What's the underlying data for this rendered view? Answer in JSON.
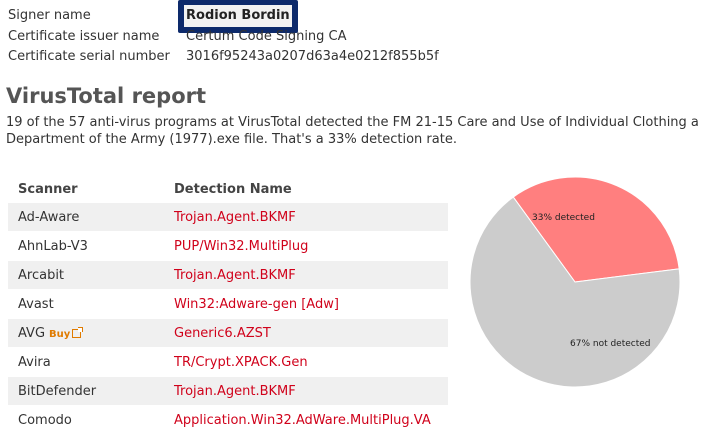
{
  "certificate": {
    "signer_label": "Signer name",
    "signer_value": "Rodion Bordin",
    "issuer_label": "Certificate issuer name",
    "issuer_value": "Certum Code Signing CA",
    "serial_label": "Certificate serial number",
    "serial_value": "3016f95243a0207d63a4e0212f855b5f"
  },
  "report": {
    "title": "VirusTotal report",
    "summary_line1": "19 of the 57 anti-virus programs at VirusTotal detected the FM 21-15 Care and Use of Individual Clothing a",
    "summary_line2": "Department of the Army (1977).exe file. That's a 33% detection rate."
  },
  "table": {
    "col_scanner": "Scanner",
    "col_detection": "Detection Name",
    "buy_label": "Buy",
    "rows": [
      {
        "scanner": "Ad-Aware",
        "detection": "Trojan.Agent.BKMF"
      },
      {
        "scanner": "AhnLab-V3",
        "detection": "PUP/Win32.MultiPlug"
      },
      {
        "scanner": "Arcabit",
        "detection": "Trojan.Agent.BKMF"
      },
      {
        "scanner": "Avast",
        "detection": "Win32:Adware-gen [Adw]"
      },
      {
        "scanner": "AVG",
        "detection": "Generic6.AZST"
      },
      {
        "scanner": "Avira",
        "detection": "TR/Crypt.XPACK.Gen"
      },
      {
        "scanner": "BitDefender",
        "detection": "Trojan.Agent.BKMF"
      },
      {
        "scanner": "Comodo",
        "detection": "Application.Win32.AdWare.MultiPlug.VA"
      }
    ]
  },
  "chart_data": {
    "type": "pie",
    "categories": [
      "33% detected",
      "67% not detected"
    ],
    "values": [
      33,
      67
    ],
    "colors": [
      "#ff7f7f",
      "#cccccc"
    ]
  }
}
